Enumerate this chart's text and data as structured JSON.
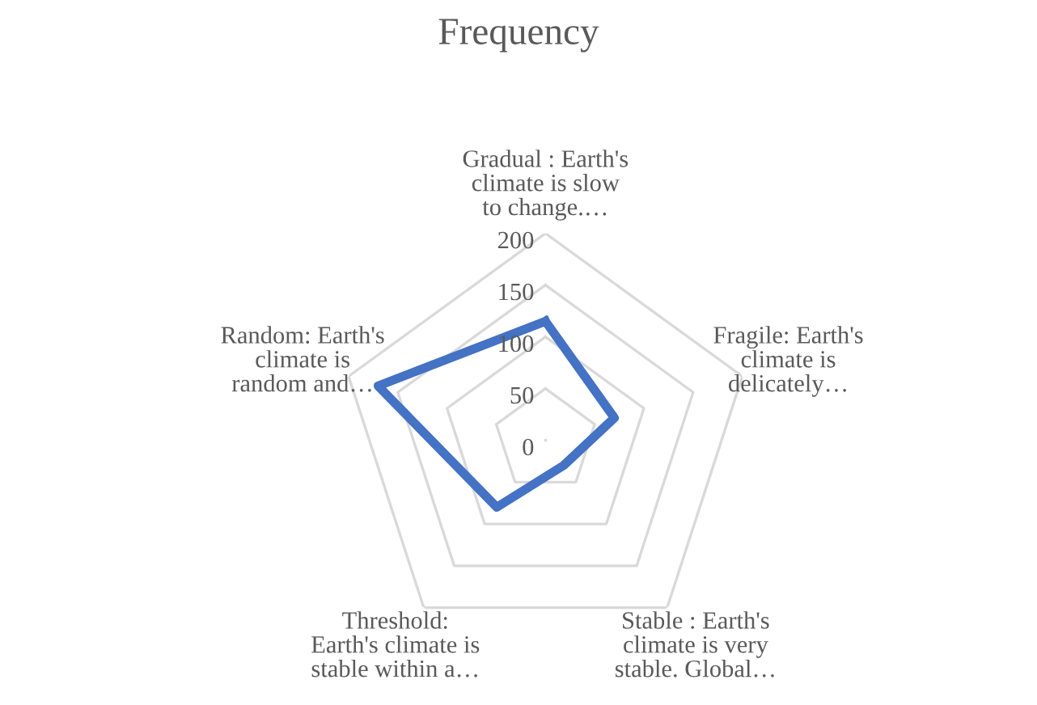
{
  "chart_data": {
    "type": "radar",
    "title": "Frequency",
    "categories": [
      "Gradual : Earth's\nclimate is slow\nto change.…",
      "Fragile: Earth's\nclimate is\ndelicately…",
      "Stable : Earth's\nclimate is very\nstable. Global…",
      "Threshold:\nEarth's climate is\nstable within a…",
      "Random: Earth's\nclimate is\nrandom and…"
    ],
    "series": [
      {
        "color": "#4472c4",
        "values": [
          115,
          70,
          30,
          80,
          170
        ]
      }
    ],
    "ylim": [
      0,
      200
    ],
    "yticks": [
      0,
      50,
      100,
      150,
      200
    ],
    "grid": true
  }
}
